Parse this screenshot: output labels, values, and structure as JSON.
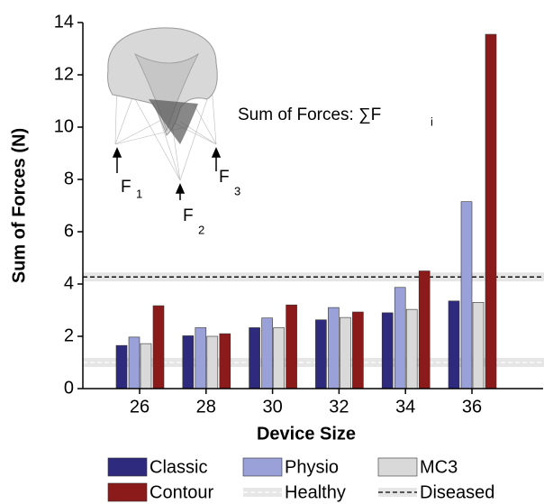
{
  "chart_data": {
    "type": "bar",
    "y_label": "Sum of Forces (N)",
    "x_label": "Device Size",
    "categories": [
      "26",
      "28",
      "30",
      "32",
      "34",
      "36"
    ],
    "series": [
      {
        "name": "Classic",
        "color": "#2e2a7e",
        "values": [
          1.65,
          2.02,
          2.33,
          2.63,
          2.9,
          3.35
        ]
      },
      {
        "name": "Physio",
        "color": "#9aa0d8",
        "values": [
          1.97,
          2.33,
          2.7,
          3.1,
          3.87,
          7.15
        ]
      },
      {
        "name": "MC3",
        "color": "#d9d9d9",
        "values": [
          1.72,
          2.0,
          2.33,
          2.72,
          3.03,
          3.3
        ]
      },
      {
        "name": "Contour",
        "color": "#8b1a1a",
        "values": [
          3.17,
          2.1,
          3.2,
          2.93,
          4.5,
          13.55
        ]
      }
    ],
    "reference_lines": [
      {
        "name": "Healthy",
        "value": 1.0,
        "color": "#d0d0d0"
      },
      {
        "name": "Diseased",
        "value": 4.27,
        "color": "#000000"
      }
    ],
    "ylim": [
      0,
      14
    ],
    "yticks": [
      0,
      2,
      4,
      6,
      8,
      10,
      12,
      14
    ],
    "annotation": {
      "text": "Sum of Forces: ∑F",
      "sub": "i"
    },
    "forces": [
      {
        "main": "F",
        "sub": "1"
      },
      {
        "main": "F",
        "sub": "2"
      },
      {
        "main": "F",
        "sub": "3"
      }
    ]
  }
}
